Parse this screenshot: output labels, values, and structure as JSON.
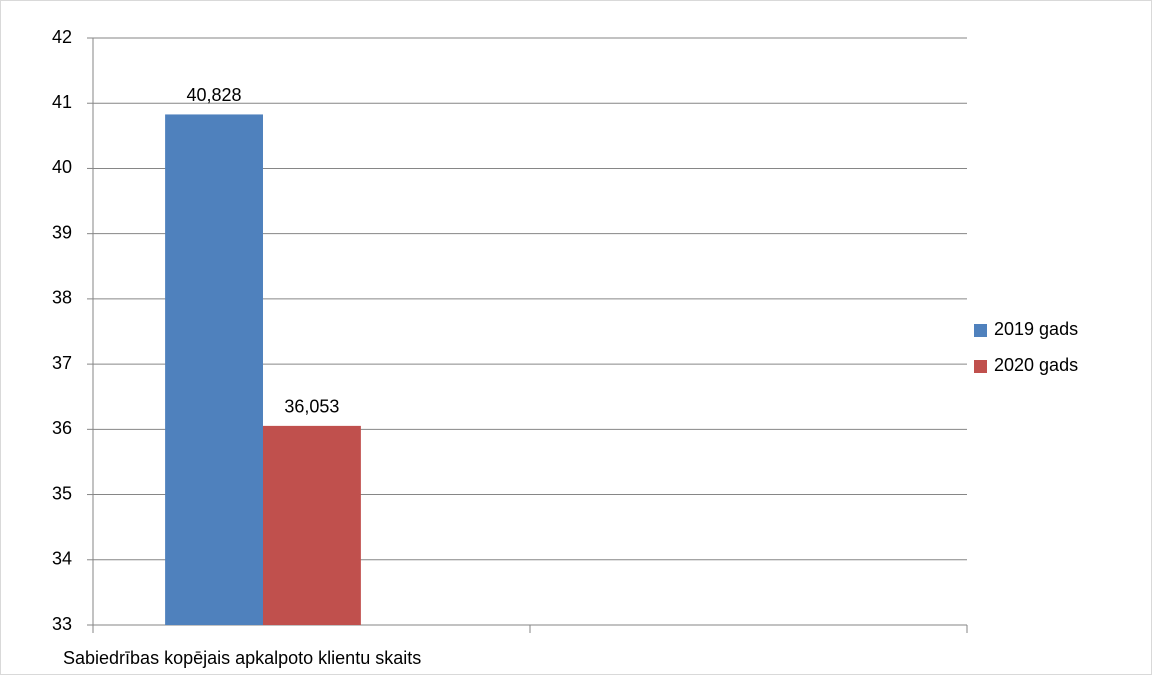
{
  "chart_data": {
    "type": "bar",
    "categories": [
      "Sabiedrības kopējais apkalpoto klientu skaits",
      null
    ],
    "series": [
      {
        "name": "2019 gads",
        "color": "#4f81bd",
        "values": [
          40.828,
          null
        ],
        "value_labels": [
          "40,828",
          null
        ]
      },
      {
        "name": "2020 gads",
        "color": "#c0504d",
        "values": [
          36.053,
          null
        ],
        "value_labels": [
          "36,053",
          null
        ]
      }
    ],
    "ylim": [
      33,
      42
    ],
    "yticks": [
      33,
      34,
      35,
      36,
      37,
      38,
      39,
      40,
      41,
      42
    ],
    "grid": true,
    "legend": "right"
  }
}
